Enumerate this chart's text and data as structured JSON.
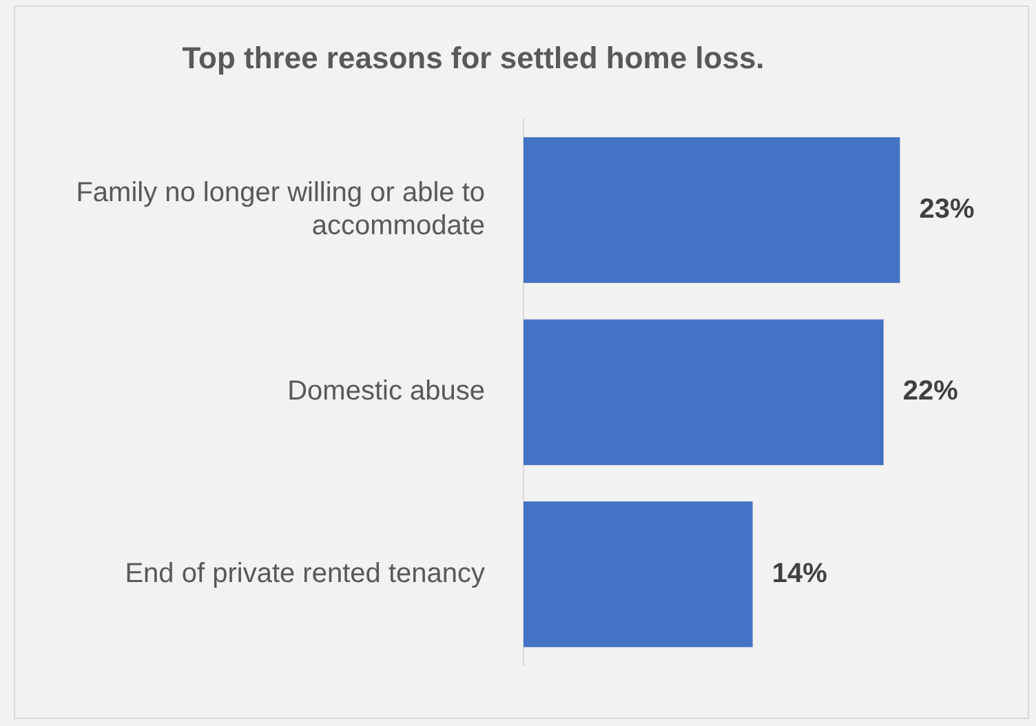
{
  "chart_data": {
    "type": "bar",
    "orientation": "horizontal",
    "title": "Top three reasons for settled home loss.",
    "categories": [
      "Family no longer willing or able to accommodate",
      "Domestic abuse",
      "End of private rented tenancy"
    ],
    "values": [
      23,
      22,
      14
    ],
    "value_labels": [
      "23%",
      "22%",
      "14%"
    ],
    "color": "#4472c4",
    "grid": false,
    "legend": false
  }
}
